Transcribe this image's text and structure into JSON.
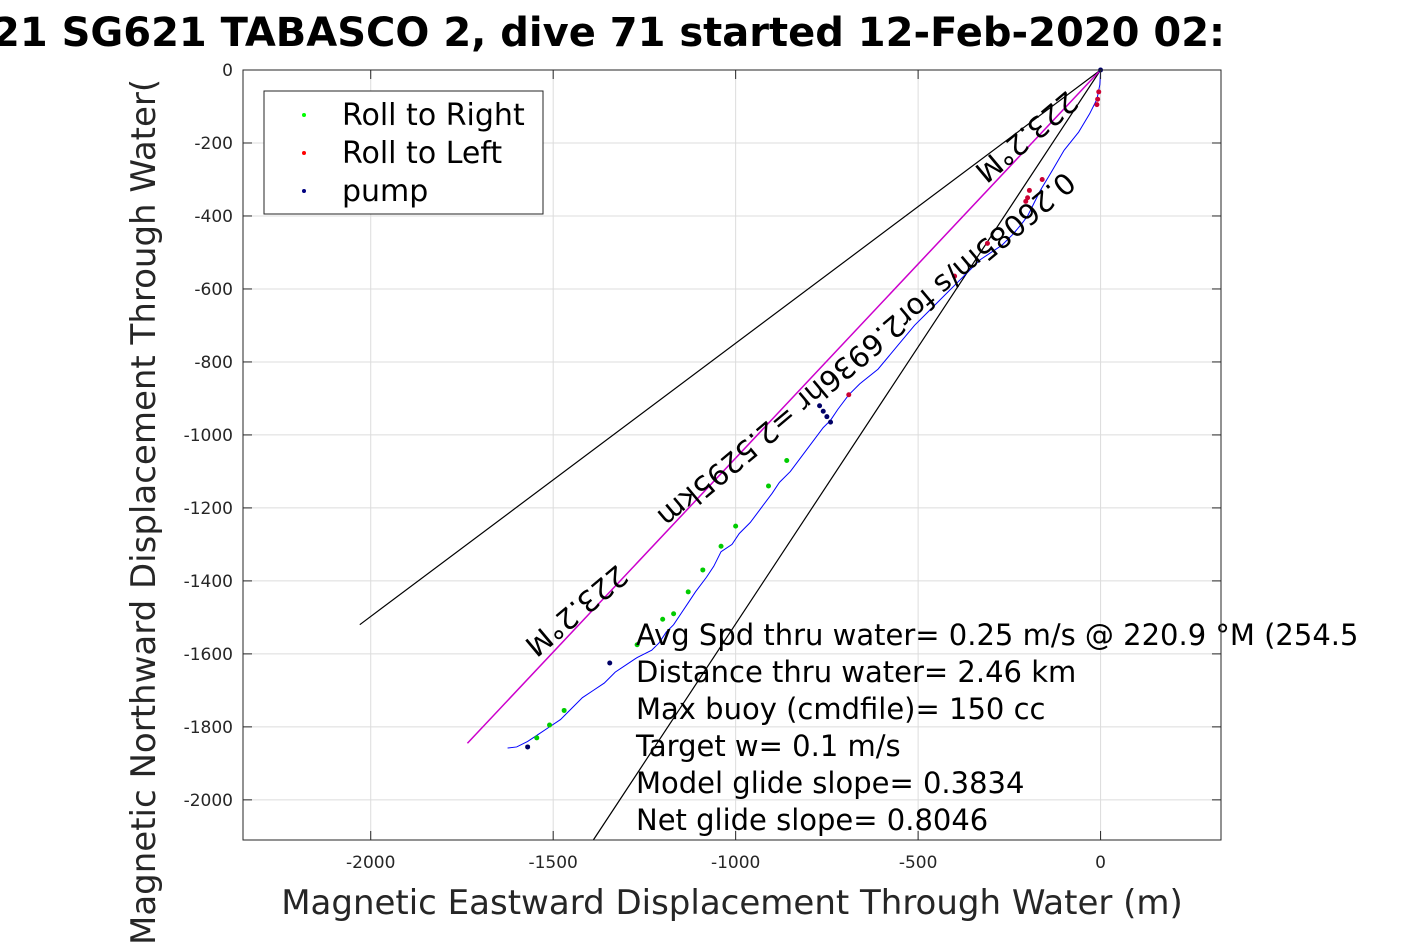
{
  "chart_data": {
    "type": "line",
    "title": "21 SG621 TABASCO 2, dive 71 started 12-Feb-2020 02:",
    "xlabel": "Magnetic Eastward Displacement Through Water (m)",
    "ylabel": "Magnetic Northward Displacement Through Water(",
    "xlim": [
      -2350,
      330
    ],
    "ylim": [
      -2110,
      0
    ],
    "xticks": [
      -2000,
      -1500,
      -1000,
      -500,
      0
    ],
    "yticks": [
      0,
      -200,
      -400,
      -600,
      -800,
      -1000,
      -1200,
      -1400,
      -1600,
      -1800,
      -2000
    ],
    "grid": true,
    "legend_position": "top-left",
    "legend": [
      {
        "label": "Roll to Right",
        "color": "#00ff00"
      },
      {
        "label": "Roll to Left",
        "color": "#ff0000"
      },
      {
        "label": "pump",
        "color": "#000080"
      }
    ],
    "colors": {
      "track": "#0000ff",
      "heading_line": "#cc00cc",
      "cone": "#000000",
      "legend_box": "#262626"
    },
    "series": [
      {
        "name": "track",
        "x": [
          0,
          -2,
          -10,
          -30,
          -60,
          -100,
          -135,
          -165,
          -185,
          -200,
          -215,
          -240,
          -270,
          -300,
          -330,
          -370,
          -400,
          -430,
          -470,
          -510,
          -560,
          -610,
          -660,
          -690,
          -720,
          -740,
          -760,
          -790,
          -820,
          -850,
          -880,
          -900,
          -930,
          -960,
          -990,
          -1010,
          -1040,
          -1060,
          -1080,
          -1110,
          -1130,
          -1150,
          -1170,
          -1190,
          -1210,
          -1230,
          -1270,
          -1300,
          -1330,
          -1360,
          -1390,
          -1420,
          -1450,
          -1480,
          -1510,
          -1540,
          -1570,
          -1600,
          -1625
        ],
        "y": [
          0,
          -40,
          -80,
          -120,
          -170,
          -220,
          -280,
          -330,
          -370,
          -400,
          -420,
          -450,
          -480,
          -500,
          -520,
          -560,
          -590,
          -620,
          -660,
          -700,
          -760,
          -820,
          -860,
          -890,
          -930,
          -960,
          -980,
          -1020,
          -1060,
          -1100,
          -1130,
          -1160,
          -1200,
          -1240,
          -1270,
          -1300,
          -1320,
          -1360,
          -1390,
          -1430,
          -1460,
          -1490,
          -1520,
          -1540,
          -1570,
          -1590,
          -1610,
          -1630,
          -1650,
          -1680,
          -1700,
          -1720,
          -1750,
          -1780,
          -1800,
          -1820,
          -1840,
          -1855,
          -1858
        ]
      },
      {
        "name": "heading",
        "x": [
          0,
          -1735
        ],
        "y": [
          0,
          -1845
        ]
      }
    ],
    "cone_lines": [
      {
        "x": [
          0,
          -2030
        ],
        "y": [
          0,
          -1520
        ]
      },
      {
        "x": [
          0,
          -1390
        ],
        "y": [
          0,
          -2110
        ]
      }
    ],
    "markers": {
      "roll_right": {
        "x": [
          -860,
          -910,
          -1000,
          -1040,
          -1090,
          -1130,
          -1170,
          -1200,
          -1270,
          -1470,
          -1510,
          -1545
        ],
        "y": [
          -1070,
          -1140,
          -1250,
          -1305,
          -1370,
          -1430,
          -1490,
          -1505,
          -1575,
          -1755,
          -1795,
          -1830
        ]
      },
      "roll_left": {
        "x": [
          -5,
          -8,
          -10,
          -160,
          -195,
          -200,
          -205,
          -310,
          -400,
          -690
        ],
        "y": [
          -60,
          -80,
          -95,
          -300,
          -330,
          -350,
          -360,
          -475,
          -565,
          -890
        ]
      },
      "pump": {
        "x": [
          0,
          -740,
          -750,
          -760,
          -770,
          -1345,
          -1570
        ],
        "y": [
          0,
          -965,
          -950,
          -935,
          -920,
          -1625,
          -1855
        ]
      }
    },
    "annotations": {
      "angle_left": "223.2°M",
      "angle_right": "223.2°M",
      "speed": "0.26085m/s for2.6936hr =2.5295km",
      "stats": [
        "Avg Spd thru water=  0.25 m/s @ 220.9 °M (254.5",
        "Distance thru water=  2.46 km",
        "Max buoy (cmdfile)= 150 cc",
        "Target w= 0.1 m/s",
        "Model glide slope= 0.3834",
        "Net glide slope= 0.8046"
      ]
    }
  }
}
